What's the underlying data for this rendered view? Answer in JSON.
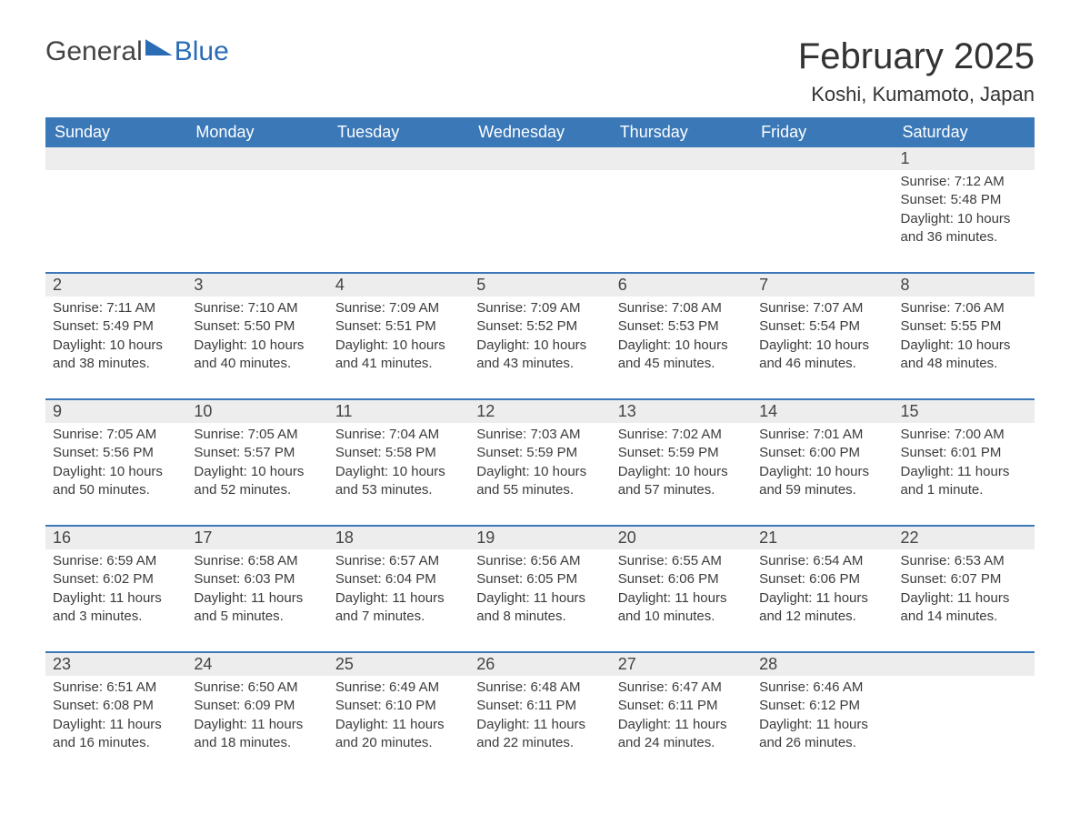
{
  "logo": {
    "text1": "General",
    "text2": "Blue"
  },
  "title": "February 2025",
  "location": "Koshi, Kumamoto, Japan",
  "colors": {
    "header_bg": "#3a78b8",
    "header_text": "#ffffff",
    "daynum_bg": "#ededed",
    "rule": "#3a78b8",
    "body_text": "#3a3a3a"
  },
  "columns": [
    "Sunday",
    "Monday",
    "Tuesday",
    "Wednesday",
    "Thursday",
    "Friday",
    "Saturday"
  ],
  "weeks": [
    [
      null,
      null,
      null,
      null,
      null,
      null,
      {
        "n": "1",
        "sunrise": "Sunrise: 7:12 AM",
        "sunset": "Sunset: 5:48 PM",
        "day1": "Daylight: 10 hours",
        "day2": "and 36 minutes."
      }
    ],
    [
      {
        "n": "2",
        "sunrise": "Sunrise: 7:11 AM",
        "sunset": "Sunset: 5:49 PM",
        "day1": "Daylight: 10 hours",
        "day2": "and 38 minutes."
      },
      {
        "n": "3",
        "sunrise": "Sunrise: 7:10 AM",
        "sunset": "Sunset: 5:50 PM",
        "day1": "Daylight: 10 hours",
        "day2": "and 40 minutes."
      },
      {
        "n": "4",
        "sunrise": "Sunrise: 7:09 AM",
        "sunset": "Sunset: 5:51 PM",
        "day1": "Daylight: 10 hours",
        "day2": "and 41 minutes."
      },
      {
        "n": "5",
        "sunrise": "Sunrise: 7:09 AM",
        "sunset": "Sunset: 5:52 PM",
        "day1": "Daylight: 10 hours",
        "day2": "and 43 minutes."
      },
      {
        "n": "6",
        "sunrise": "Sunrise: 7:08 AM",
        "sunset": "Sunset: 5:53 PM",
        "day1": "Daylight: 10 hours",
        "day2": "and 45 minutes."
      },
      {
        "n": "7",
        "sunrise": "Sunrise: 7:07 AM",
        "sunset": "Sunset: 5:54 PM",
        "day1": "Daylight: 10 hours",
        "day2": "and 46 minutes."
      },
      {
        "n": "8",
        "sunrise": "Sunrise: 7:06 AM",
        "sunset": "Sunset: 5:55 PM",
        "day1": "Daylight: 10 hours",
        "day2": "and 48 minutes."
      }
    ],
    [
      {
        "n": "9",
        "sunrise": "Sunrise: 7:05 AM",
        "sunset": "Sunset: 5:56 PM",
        "day1": "Daylight: 10 hours",
        "day2": "and 50 minutes."
      },
      {
        "n": "10",
        "sunrise": "Sunrise: 7:05 AM",
        "sunset": "Sunset: 5:57 PM",
        "day1": "Daylight: 10 hours",
        "day2": "and 52 minutes."
      },
      {
        "n": "11",
        "sunrise": "Sunrise: 7:04 AM",
        "sunset": "Sunset: 5:58 PM",
        "day1": "Daylight: 10 hours",
        "day2": "and 53 minutes."
      },
      {
        "n": "12",
        "sunrise": "Sunrise: 7:03 AM",
        "sunset": "Sunset: 5:59 PM",
        "day1": "Daylight: 10 hours",
        "day2": "and 55 minutes."
      },
      {
        "n": "13",
        "sunrise": "Sunrise: 7:02 AM",
        "sunset": "Sunset: 5:59 PM",
        "day1": "Daylight: 10 hours",
        "day2": "and 57 minutes."
      },
      {
        "n": "14",
        "sunrise": "Sunrise: 7:01 AM",
        "sunset": "Sunset: 6:00 PM",
        "day1": "Daylight: 10 hours",
        "day2": "and 59 minutes."
      },
      {
        "n": "15",
        "sunrise": "Sunrise: 7:00 AM",
        "sunset": "Sunset: 6:01 PM",
        "day1": "Daylight: 11 hours",
        "day2": "and 1 minute."
      }
    ],
    [
      {
        "n": "16",
        "sunrise": "Sunrise: 6:59 AM",
        "sunset": "Sunset: 6:02 PM",
        "day1": "Daylight: 11 hours",
        "day2": "and 3 minutes."
      },
      {
        "n": "17",
        "sunrise": "Sunrise: 6:58 AM",
        "sunset": "Sunset: 6:03 PM",
        "day1": "Daylight: 11 hours",
        "day2": "and 5 minutes."
      },
      {
        "n": "18",
        "sunrise": "Sunrise: 6:57 AM",
        "sunset": "Sunset: 6:04 PM",
        "day1": "Daylight: 11 hours",
        "day2": "and 7 minutes."
      },
      {
        "n": "19",
        "sunrise": "Sunrise: 6:56 AM",
        "sunset": "Sunset: 6:05 PM",
        "day1": "Daylight: 11 hours",
        "day2": "and 8 minutes."
      },
      {
        "n": "20",
        "sunrise": "Sunrise: 6:55 AM",
        "sunset": "Sunset: 6:06 PM",
        "day1": "Daylight: 11 hours",
        "day2": "and 10 minutes."
      },
      {
        "n": "21",
        "sunrise": "Sunrise: 6:54 AM",
        "sunset": "Sunset: 6:06 PM",
        "day1": "Daylight: 11 hours",
        "day2": "and 12 minutes."
      },
      {
        "n": "22",
        "sunrise": "Sunrise: 6:53 AM",
        "sunset": "Sunset: 6:07 PM",
        "day1": "Daylight: 11 hours",
        "day2": "and 14 minutes."
      }
    ],
    [
      {
        "n": "23",
        "sunrise": "Sunrise: 6:51 AM",
        "sunset": "Sunset: 6:08 PM",
        "day1": "Daylight: 11 hours",
        "day2": "and 16 minutes."
      },
      {
        "n": "24",
        "sunrise": "Sunrise: 6:50 AM",
        "sunset": "Sunset: 6:09 PM",
        "day1": "Daylight: 11 hours",
        "day2": "and 18 minutes."
      },
      {
        "n": "25",
        "sunrise": "Sunrise: 6:49 AM",
        "sunset": "Sunset: 6:10 PM",
        "day1": "Daylight: 11 hours",
        "day2": "and 20 minutes."
      },
      {
        "n": "26",
        "sunrise": "Sunrise: 6:48 AM",
        "sunset": "Sunset: 6:11 PM",
        "day1": "Daylight: 11 hours",
        "day2": "and 22 minutes."
      },
      {
        "n": "27",
        "sunrise": "Sunrise: 6:47 AM",
        "sunset": "Sunset: 6:11 PM",
        "day1": "Daylight: 11 hours",
        "day2": "and 24 minutes."
      },
      {
        "n": "28",
        "sunrise": "Sunrise: 6:46 AM",
        "sunset": "Sunset: 6:12 PM",
        "day1": "Daylight: 11 hours",
        "day2": "and 26 minutes."
      },
      null
    ]
  ]
}
